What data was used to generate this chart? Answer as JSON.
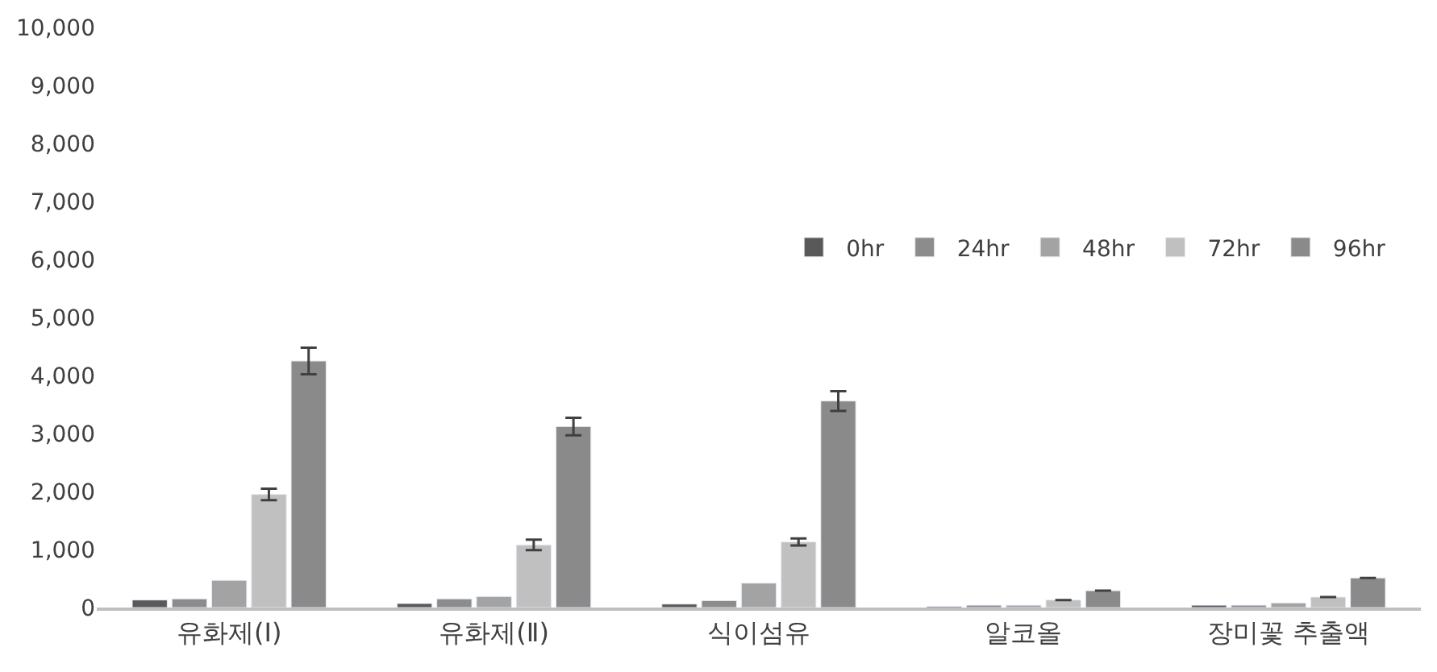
{
  "chart_data": {
    "type": "bar",
    "categories": [
      "유화제(Ⅰ)",
      "유화제(Ⅱ)",
      "식이섬유",
      "알코올",
      "장미꽃 추출액"
    ],
    "series": [
      {
        "name": "0hr",
        "color": "#595959",
        "values": [
          130,
          70,
          60,
          20,
          40
        ]
      },
      {
        "name": "24hr",
        "color": "#8c8c8c",
        "values": [
          150,
          150,
          120,
          40,
          40
        ]
      },
      {
        "name": "48hr",
        "color": "#a3a3a3",
        "values": [
          470,
          190,
          420,
          40,
          80
        ]
      },
      {
        "name": "72hr",
        "color": "#c0c0c0",
        "values": [
          1950,
          1080,
          1130,
          130,
          180
        ],
        "errors": [
          100,
          90,
          60,
          null,
          null
        ]
      },
      {
        "name": "96hr",
        "color": "#8a8a8a",
        "values": [
          4250,
          3120,
          3560,
          290,
          510
        ],
        "errors": [
          230,
          150,
          170,
          null,
          null
        ]
      }
    ],
    "ylim": [
      0,
      10000
    ],
    "yticks": [
      {
        "value": 0,
        "label": "0"
      },
      {
        "value": 1000,
        "label": "1,000"
      },
      {
        "value": 2000,
        "label": "2,000"
      },
      {
        "value": 3000,
        "label": "3,000"
      },
      {
        "value": 4000,
        "label": "4,000"
      },
      {
        "value": 5000,
        "label": "5,000"
      },
      {
        "value": 6000,
        "label": "6,000"
      },
      {
        "value": 7000,
        "label": "7,000"
      },
      {
        "value": 8000,
        "label": "8,000"
      },
      {
        "value": 9000,
        "label": "9,000"
      },
      {
        "value": 10000,
        "label": "10,000"
      }
    ],
    "grid": false,
    "legend": "top right"
  }
}
